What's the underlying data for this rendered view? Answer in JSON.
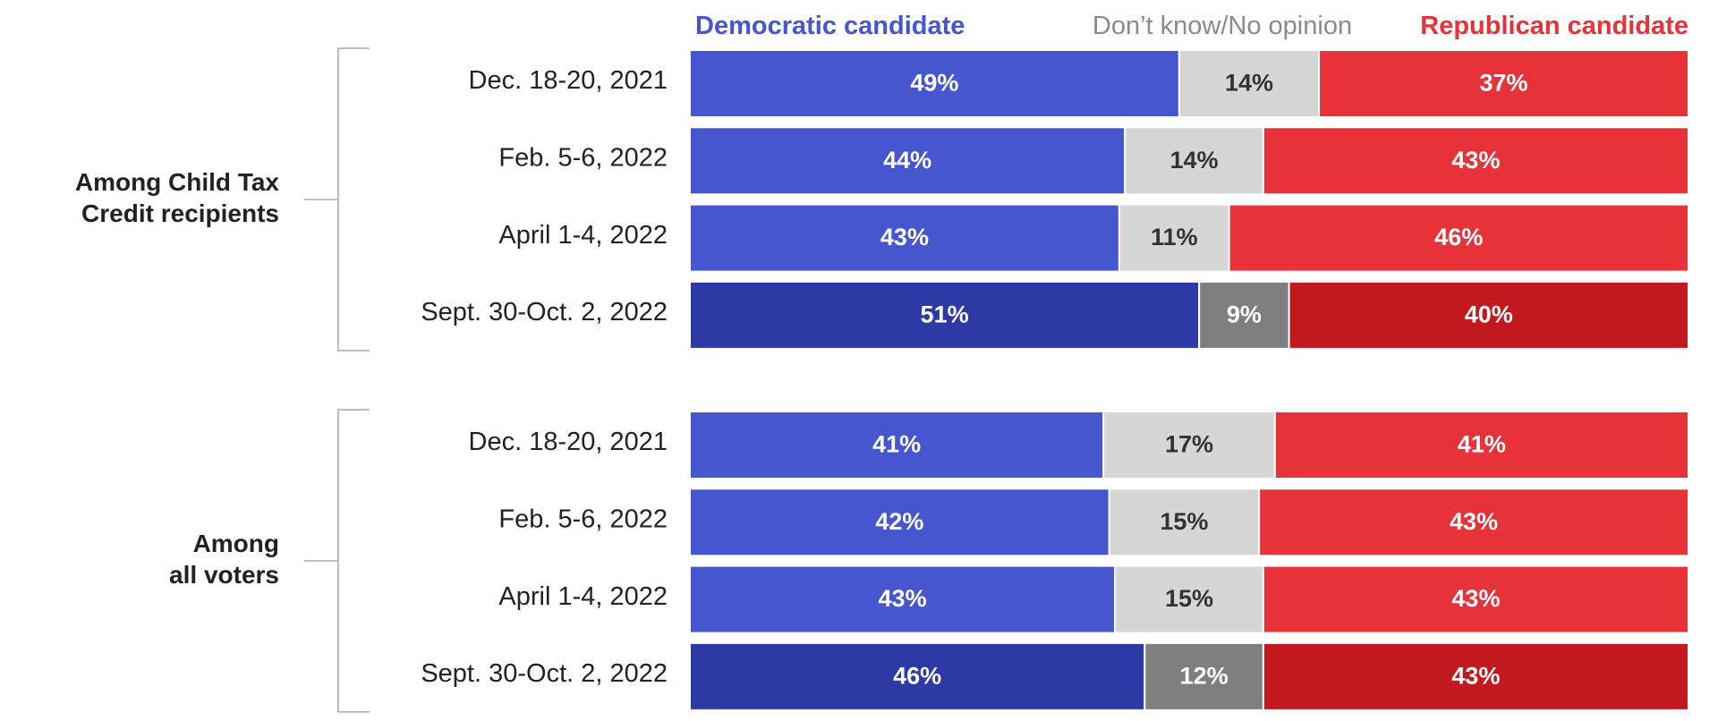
{
  "chart_data": {
    "type": "bar",
    "orientation": "horizontal",
    "stacked": true,
    "legend": [
      {
        "key": "dem",
        "label": "Democratic candidate",
        "color": "#4556CF",
        "text_color": "#4556CF"
      },
      {
        "key": "dk",
        "label": "Don’t know/No opinion",
        "color": "#D6D6D6",
        "text_color": "#8A8A8A"
      },
      {
        "key": "rep",
        "label": "Republican candidate",
        "color": "#E8323A",
        "text_color": "#E8323A"
      }
    ],
    "groups": [
      {
        "label_lines": [
          "Among Child Tax",
          "Credit recipients"
        ],
        "rows": [
          {
            "date": "Dec. 18-20, 2021",
            "dem": 49,
            "dk": 14,
            "rep": 37,
            "highlight": false
          },
          {
            "date": "Feb. 5-6, 2022",
            "dem": 44,
            "dk": 14,
            "rep": 43,
            "highlight": false
          },
          {
            "date": "April 1-4, 2022",
            "dem": 43,
            "dk": 11,
            "rep": 46,
            "highlight": false
          },
          {
            "date": "Sept. 30-Oct. 2, 2022",
            "dem": 51,
            "dk": 9,
            "rep": 40,
            "highlight": true
          }
        ]
      },
      {
        "label_lines": [
          "Among",
          "all voters"
        ],
        "rows": [
          {
            "date": "Dec. 18-20, 2021",
            "dem": 41,
            "dk": 17,
            "rep": 41,
            "highlight": false
          },
          {
            "date": "Feb. 5-6, 2022",
            "dem": 42,
            "dk": 15,
            "rep": 43,
            "highlight": false
          },
          {
            "date": "April 1-4, 2022",
            "dem": 43,
            "dk": 15,
            "rep": 43,
            "highlight": false
          },
          {
            "date": "Sept. 30-Oct. 2, 2022",
            "dem": 46,
            "dk": 12,
            "rep": 43,
            "highlight": true
          }
        ]
      }
    ],
    "highlight_colors": {
      "dem": "#2D3AA5",
      "dk": "#7F7F7F",
      "rep": "#C1191E"
    },
    "label_colors": {
      "dem": "#FFFFFF",
      "dk": "#333333",
      "rep": "#FFFFFF",
      "dk_highlight": "#FFFFFF"
    },
    "value_suffix": "%"
  }
}
